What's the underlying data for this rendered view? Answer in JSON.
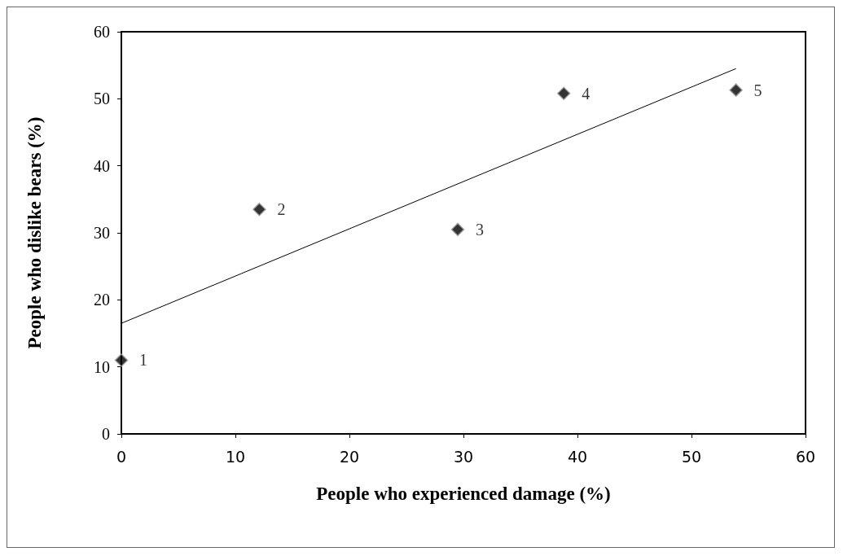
{
  "chart_data": {
    "type": "scatter",
    "xlabel": "People who experienced damage (%)",
    "ylabel": "People who dislike bears (%)",
    "xlim": [
      0,
      60
    ],
    "xticks": [
      0,
      10,
      20,
      30,
      40,
      50,
      60
    ],
    "ylim": [
      0,
      60
    ],
    "yticks": [
      0,
      10,
      20,
      30,
      40,
      50,
      60
    ],
    "grid": false,
    "series": [
      {
        "marker": "diamond",
        "color": "#000000",
        "x": [
          0,
          12.1,
          29.5,
          38.8,
          53.9
        ],
        "values": [
          11,
          33.5,
          30.5,
          50.8,
          51.3
        ]
      },
      {
        "type": "line",
        "marker": "none",
        "color": "#000000",
        "x": [
          0,
          53.9
        ],
        "values": [
          16.5,
          54.5
        ]
      }
    ],
    "annotations": [
      {
        "text": "1",
        "x": 0,
        "y": 11
      },
      {
        "text": "2",
        "x": 12.1,
        "y": 33.5
      },
      {
        "text": "3",
        "x": 29.5,
        "y": 30.5
      },
      {
        "text": "4",
        "x": 38.8,
        "y": 50.8
      },
      {
        "text": "5",
        "x": 53.9,
        "y": 51.3
      }
    ]
  }
}
